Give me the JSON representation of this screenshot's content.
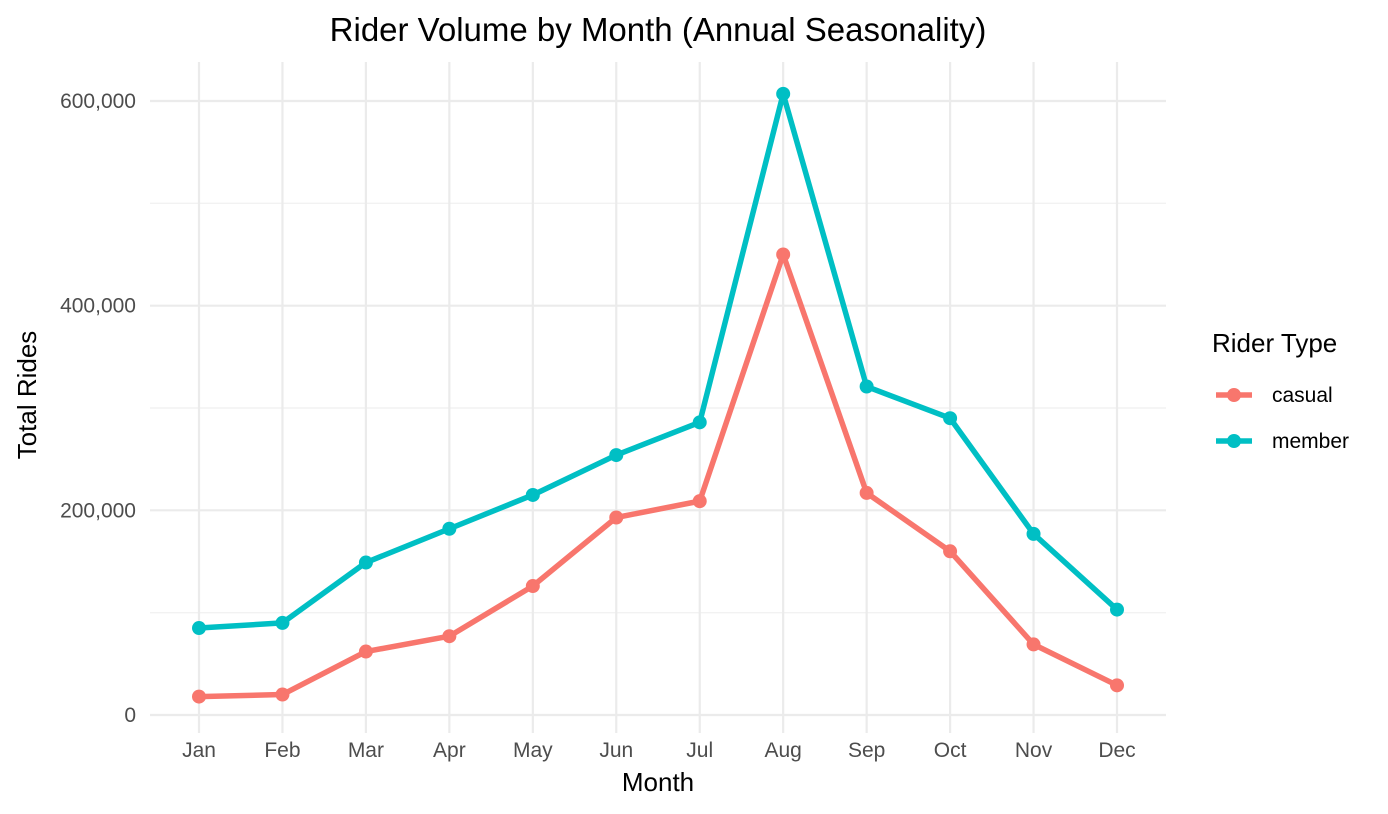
{
  "chart_data": {
    "type": "line",
    "title": "Rider Volume by Month (Annual Seasonality)",
    "xlabel": "Month",
    "ylabel": "Total Rides",
    "categories": [
      "Jan",
      "Feb",
      "Mar",
      "Apr",
      "May",
      "Jun",
      "Jul",
      "Aug",
      "Sep",
      "Oct",
      "Nov",
      "Dec"
    ],
    "ylim": [
      0,
      640000
    ],
    "y_ticks": [
      0,
      200000,
      400000,
      600000
    ],
    "y_tick_labels": [
      "0",
      "200,000",
      "400,000",
      "600,000"
    ],
    "y_minor_ticks": [
      100000,
      300000,
      500000
    ],
    "grid": true,
    "legend": {
      "title": "Rider Type",
      "placement": "right"
    },
    "series": [
      {
        "name": "casual",
        "color": "#F8766D",
        "values": [
          18000,
          20000,
          62000,
          77000,
          126000,
          193000,
          209000,
          450000,
          217000,
          160000,
          69000,
          29000
        ]
      },
      {
        "name": "member",
        "color": "#00BFC4",
        "values": [
          85000,
          90000,
          149000,
          182000,
          215000,
          254000,
          286000,
          607000,
          321000,
          290000,
          177000,
          103000
        ]
      }
    ]
  }
}
